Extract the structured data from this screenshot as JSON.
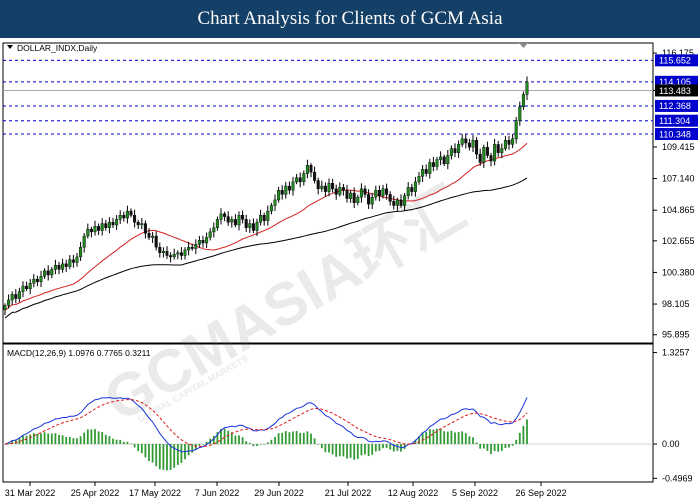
{
  "title": "Chart Analysis for Clients of GCM Asia",
  "watermark": {
    "main": "GCMASIA环汇",
    "sub": "GLOBAL CAPITAL MARKETS"
  },
  "chart_data": [
    {
      "type": "candlestick",
      "symbol_label": "DOLLAR_INDX,Daily",
      "ylim": [
        95.3,
        116.9
      ],
      "y_ticks": [
        "116.175",
        "113.483",
        "109.415",
        "107.140",
        "104.865",
        "102.655",
        "100.380",
        "98.105",
        "95.895"
      ],
      "x_ticks": [
        "31 Mar 2022",
        "25 Apr 2022",
        "17 May 2022",
        "7 Jun 2022",
        "29 Jun 2022",
        "21 Jul 2022",
        "12 Aug 2022",
        "5 Sep 2022",
        "26 Sep 2022"
      ],
      "closes": [
        98.0,
        98.4,
        98.8,
        98.5,
        99.0,
        99.4,
        99.2,
        99.6,
        99.9,
        99.7,
        100.1,
        100.5,
        100.2,
        100.6,
        100.9,
        100.6,
        101.0,
        100.8,
        101.3,
        101.1,
        101.5,
        102.2,
        103.0,
        103.5,
        103.3,
        103.7,
        103.4,
        103.9,
        103.6,
        104.0,
        103.8,
        104.2,
        104.5,
        104.3,
        104.8,
        104.5,
        104.0,
        103.8,
        103.9,
        103.2,
        102.9,
        103.0,
        102.2,
        101.8,
        101.9,
        101.6,
        101.5,
        101.7,
        101.8,
        101.6,
        102.0,
        102.2,
        102.1,
        102.4,
        102.7,
        102.5,
        102.9,
        103.3,
        103.6,
        104.2,
        104.6,
        104.4,
        104.0,
        104.2,
        103.8,
        104.5,
        104.2,
        103.6,
        103.9,
        103.4,
        104.0,
        104.5,
        104.1,
        104.8,
        105.2,
        105.6,
        106.3,
        106.0,
        106.6,
        106.3,
        106.9,
        107.2,
        106.9,
        107.5,
        108.1,
        107.6,
        107.0,
        106.4,
        106.6,
        106.2,
        106.8,
        106.4,
        106.0,
        106.5,
        106.3,
        105.7,
        106.1,
        105.4,
        105.8,
        106.4,
        106.0,
        105.3,
        105.8,
        106.3,
        105.9,
        106.4,
        106.0,
        105.5,
        105.2,
        105.6,
        105.2,
        105.9,
        106.5,
        106.2,
        106.9,
        107.3,
        107.8,
        107.5,
        108.3,
        108.0,
        108.5,
        108.7,
        108.2,
        108.8,
        109.3,
        109.0,
        109.6,
        110.0,
        109.7,
        109.4,
        109.9,
        108.9,
        108.3,
        109.4,
        108.8,
        108.4,
        109.6,
        109.0,
        109.3,
        109.9,
        109.6,
        110.0,
        111.3,
        112.3,
        113.2,
        114.1
      ],
      "series": [
        {
          "name": "red MA",
          "color": "#d42020",
          "period": 20
        },
        {
          "name": "black MA",
          "color": "#000000",
          "period": 50
        }
      ],
      "hlines": [
        {
          "value": 115.652,
          "label": "115.652",
          "style": "dashed",
          "color": "#0000cc"
        },
        {
          "value": 114.105,
          "label": "114.105",
          "style": "dashed",
          "color": "#0000cc"
        },
        {
          "value": 113.483,
          "label": "113.483",
          "style": "solid",
          "color": "#aaaaaa"
        },
        {
          "value": 112.368,
          "label": "112.368",
          "style": "dashed",
          "color": "#0000cc"
        },
        {
          "value": 111.304,
          "label": "111.304",
          "style": "dashed",
          "color": "#0000cc"
        },
        {
          "value": 110.348,
          "label": "110.348",
          "style": "dashed",
          "color": "#0000cc"
        }
      ]
    },
    {
      "type": "macd",
      "label": "MACD(12,26,9) 1.0976 0.7765 0.3211",
      "ylim": [
        -0.55,
        1.45
      ],
      "y_ticks": [
        "1.3257",
        "0.00",
        "-0.4969"
      ],
      "macd_color": "#1a33dd",
      "signal_color": "#dd1a1a",
      "hist_color": "#339933"
    }
  ]
}
